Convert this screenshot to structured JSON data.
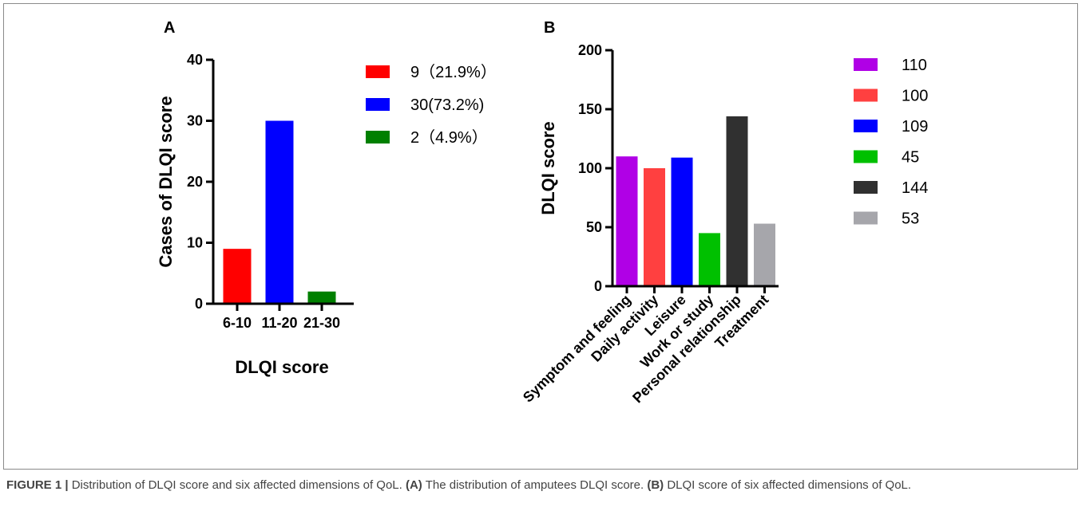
{
  "figure": {
    "caption_label": "FIGURE 1 |",
    "caption_text": " Distribution of DLQI score and six affected dimensions of QoL. ",
    "caption_a_label": "(A)",
    "caption_a_text": " The distribution of amputees DLQI score. ",
    "caption_b_label": "(B)",
    "caption_b_text": " DLQI score of six affected dimensions of QoL."
  },
  "chart_data": [
    {
      "panel": "A",
      "type": "bar",
      "title": "",
      "xlabel": "DLQI score",
      "ylabel": "Cases of DLQI score",
      "ylim": [
        0,
        40
      ],
      "yticks": [
        0,
        10,
        20,
        30,
        40
      ],
      "categories": [
        "6-10",
        "11-20",
        "21-30"
      ],
      "values": [
        9,
        30,
        2
      ],
      "colors": [
        "#ff0000",
        "#0000ff",
        "#008000"
      ],
      "legend": [
        "9（21.9%）",
        "30(73.2%)",
        "2（4.9%）"
      ],
      "legend_position": "right",
      "grid": false
    },
    {
      "panel": "B",
      "type": "bar",
      "title": "",
      "xlabel": "",
      "ylabel": "DLQI score",
      "ylim": [
        0,
        200
      ],
      "yticks": [
        0,
        50,
        100,
        150,
        200
      ],
      "categories": [
        "Symptom and feeling",
        "Daily activity",
        "Leisure",
        "Work or study",
        "Personal relationship",
        "Treatment"
      ],
      "values": [
        110,
        100,
        109,
        45,
        144,
        53
      ],
      "colors": [
        "#b000e6",
        "#ff4040",
        "#0000ff",
        "#00c000",
        "#303030",
        "#a6a6ab"
      ],
      "legend": [
        "110",
        "100",
        "109",
        "45",
        "144",
        "53"
      ],
      "legend_position": "right",
      "grid": false
    }
  ]
}
